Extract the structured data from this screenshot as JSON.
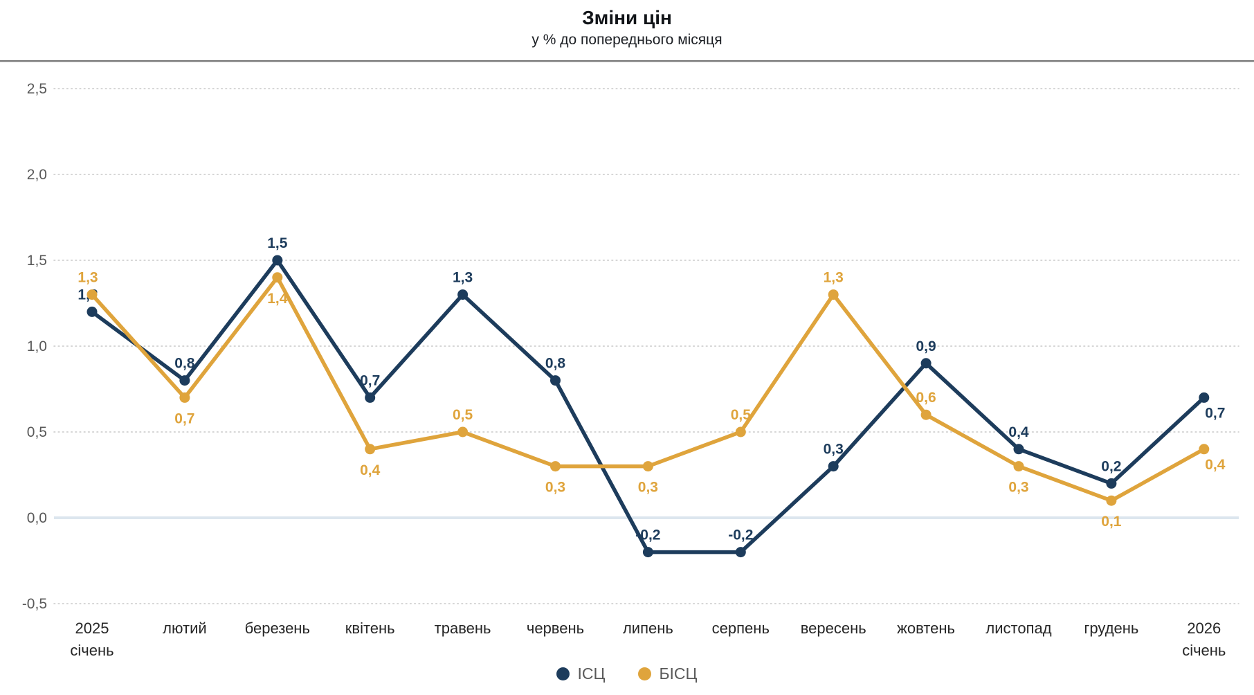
{
  "header": {
    "title": "Зміни цін",
    "subtitle": "у % до попереднього місяця"
  },
  "chart_data": {
    "type": "line",
    "title": "Зміни цін",
    "subtitle": "у % до попереднього місяця",
    "unit": "percent, month-over-month",
    "decimal_separator": ",",
    "categories": [
      [
        "2025",
        "січень"
      ],
      [
        "лютий"
      ],
      [
        "березень"
      ],
      [
        "квітень"
      ],
      [
        "травень"
      ],
      [
        "червень"
      ],
      [
        "липень"
      ],
      [
        "серпень"
      ],
      [
        "вересень"
      ],
      [
        "жовтень"
      ],
      [
        "листопад"
      ],
      [
        "грудень"
      ],
      [
        "2026",
        "січень"
      ]
    ],
    "series": [
      {
        "name": "ІСЦ",
        "color": "#1D3C5C",
        "values": [
          1.2,
          0.8,
          1.5,
          0.7,
          1.3,
          0.8,
          -0.2,
          -0.2,
          0.3,
          0.9,
          0.4,
          0.2,
          0.7
        ],
        "label_positions": [
          "above",
          "above",
          "above",
          "above",
          "above",
          "above",
          "above",
          "above",
          "above",
          "above",
          "above",
          "above",
          "below-right"
        ]
      },
      {
        "name": "БІСЦ",
        "color": "#DFA43C",
        "values": [
          1.3,
          0.7,
          1.4,
          0.4,
          0.5,
          0.3,
          0.3,
          0.5,
          1.3,
          0.6,
          0.3,
          0.1,
          0.4
        ],
        "label_positions": [
          "above",
          "below",
          "below",
          "below",
          "above",
          "below",
          "below",
          "above",
          "above",
          "above",
          "below",
          "below",
          "below-right"
        ]
      }
    ],
    "y_ticks": [
      2.5,
      2.0,
      1.5,
      1.0,
      0.5,
      0.0,
      -0.5
    ],
    "ylim": [
      -0.5,
      2.5
    ],
    "grid": "horizontal dotted",
    "gridline_color": "#c9c9c9",
    "zero_line_color": "#dce6ee",
    "legend_position": "bottom-center"
  },
  "legend": {
    "items": [
      {
        "label": "ІСЦ",
        "color": "#1D3C5C"
      },
      {
        "label": "БІСЦ",
        "color": "#DFA43C"
      }
    ]
  }
}
